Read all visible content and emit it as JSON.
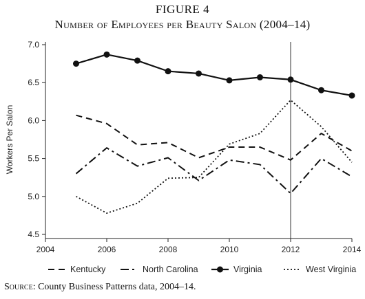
{
  "figure": {
    "label": "FIGURE 4",
    "title": "Number of Employees per Beauty Salon (2004–14)",
    "source_prefix": "Source",
    "source_text": ": County Business Patterns data, 2004–14."
  },
  "chart_data": {
    "type": "line",
    "ylabel": "Workers Per Salon",
    "xlabel": "",
    "xlim": [
      2004,
      2014
    ],
    "ylim": [
      4.5,
      7.0
    ],
    "x_ticks": [
      2004,
      2006,
      2008,
      2010,
      2012,
      2014
    ],
    "y_ticks": [
      4.5,
      5.0,
      5.5,
      6.0,
      6.5,
      7.0
    ],
    "y_tick_labels": [
      "4.5",
      "5.0",
      "5.5",
      "6.0",
      "6.5",
      "7.0"
    ],
    "reference_line_x": 2012,
    "grid": false,
    "legend_position": "bottom",
    "x": [
      2005,
      2006,
      2007,
      2008,
      2009,
      2010,
      2011,
      2012,
      2013,
      2014
    ],
    "series": [
      {
        "name": "Kentucky",
        "style": "dashed",
        "color": "#111111",
        "values": [
          6.07,
          5.96,
          5.68,
          5.71,
          5.51,
          5.65,
          5.65,
          5.48,
          5.83,
          5.6
        ]
      },
      {
        "name": "North Carolina",
        "style": "dashdot",
        "color": "#111111",
        "values": [
          5.3,
          5.64,
          5.4,
          5.51,
          5.21,
          5.48,
          5.42,
          5.04,
          5.5,
          5.26
        ]
      },
      {
        "name": "Virginia",
        "style": "solid-markers",
        "color": "#111111",
        "values": [
          6.75,
          6.87,
          6.79,
          6.65,
          6.62,
          6.53,
          6.57,
          6.54,
          6.4,
          6.33
        ]
      },
      {
        "name": "West Virginia",
        "style": "dotted",
        "color": "#111111",
        "values": [
          5.0,
          4.78,
          4.91,
          5.24,
          5.25,
          5.69,
          5.83,
          6.27,
          5.92,
          5.45
        ]
      }
    ]
  }
}
